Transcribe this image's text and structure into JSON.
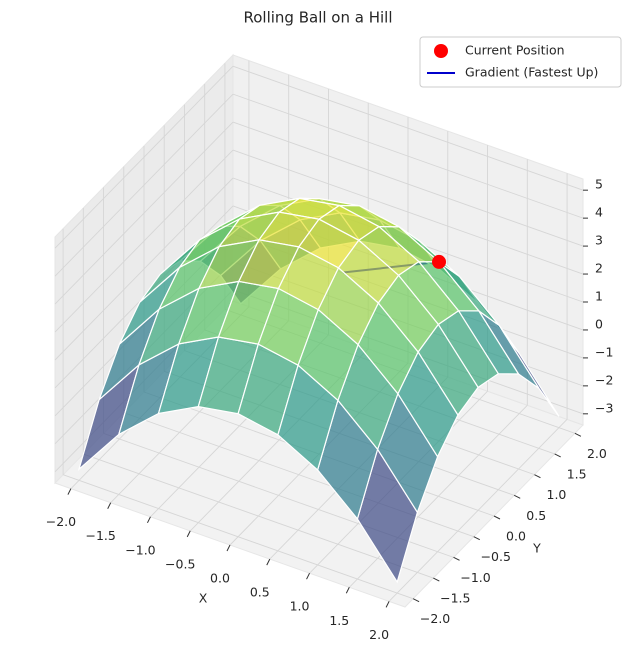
{
  "chart_data": {
    "type": "surface3d",
    "title": "Rolling Ball on a Hill",
    "xlabel": "X",
    "ylabel": "Y",
    "colormap": "viridis",
    "x": [
      -2,
      -1.5,
      -1,
      -0.5,
      0,
      0.5,
      1,
      1.5,
      2
    ],
    "y": [
      -2,
      -1.5,
      -1,
      -0.5,
      0,
      0.5,
      1,
      1.5,
      2
    ],
    "z": [
      [
        -3,
        -1.25,
        0,
        0.75,
        1,
        0.75,
        0,
        -1.25,
        -3
      ],
      [
        -1.25,
        0.5,
        1.75,
        2.5,
        2.75,
        2.5,
        1.75,
        0.5,
        -1.25
      ],
      [
        0,
        1.75,
        3,
        3.75,
        4,
        3.75,
        3,
        1.75,
        0
      ],
      [
        0.75,
        2.5,
        3.75,
        4.5,
        4.75,
        4.5,
        3.75,
        2.5,
        0.75
      ],
      [
        1,
        2.75,
        4,
        4.75,
        5,
        4.75,
        4,
        2.75,
        1
      ],
      [
        0.75,
        2.5,
        3.75,
        4.5,
        4.75,
        4.5,
        3.75,
        2.5,
        0.75
      ],
      [
        0,
        1.75,
        3,
        3.75,
        4,
        3.75,
        3,
        1.75,
        0
      ],
      [
        -1.25,
        0.5,
        1.75,
        2.5,
        2.75,
        2.5,
        1.75,
        0.5,
        -1.25
      ],
      [
        -3,
        -1.25,
        0,
        0.75,
        1,
        0.75,
        0,
        -1.25,
        -3
      ]
    ],
    "xlim": [
      -2.2,
      2.2
    ],
    "ylim": [
      -2.2,
      2.2
    ],
    "zlim": [
      -3.4,
      5.4
    ],
    "xticks": [
      {
        "value": -2,
        "label": "−2.0"
      },
      {
        "value": -1.5,
        "label": "−1.5"
      },
      {
        "value": -1,
        "label": "−1.0"
      },
      {
        "value": -0.5,
        "label": "−0.5"
      },
      {
        "value": 0,
        "label": "0.0"
      },
      0.5,
      {
        "value": 1,
        "label": "1.0"
      },
      1.5,
      {
        "value": 2,
        "label": "2.0"
      }
    ],
    "yticks": [
      {
        "value": -2,
        "label": "−2.0"
      },
      {
        "value": -1.5,
        "label": "−1.5"
      },
      {
        "value": -1,
        "label": "−1.0"
      },
      {
        "value": -0.5,
        "label": "−0.5"
      },
      {
        "value": 0,
        "label": "0.0"
      },
      0.5,
      {
        "value": 1,
        "label": "1.0"
      },
      1.5,
      {
        "value": 2,
        "label": "2.0"
      }
    ],
    "zticks": [
      {
        "value": -3,
        "label": "−3"
      },
      {
        "value": -2,
        "label": "−2"
      },
      {
        "value": -1,
        "label": "−1"
      },
      0,
      1,
      2,
      3,
      4,
      5
    ],
    "series": [
      {
        "name": "Current Position",
        "color": "#ff0000",
        "mode": "markers",
        "x": [
          1
        ],
        "y": [
          1
        ],
        "z": [
          3
        ]
      },
      {
        "name": "Gradient (Fastest Up)",
        "color": "#0000cc",
        "mode": "lines",
        "x": [
          1,
          0.2
        ],
        "y": [
          1,
          0.2
        ],
        "z": [
          3,
          3
        ]
      }
    ],
    "grid": true,
    "legend": "upper right"
  }
}
